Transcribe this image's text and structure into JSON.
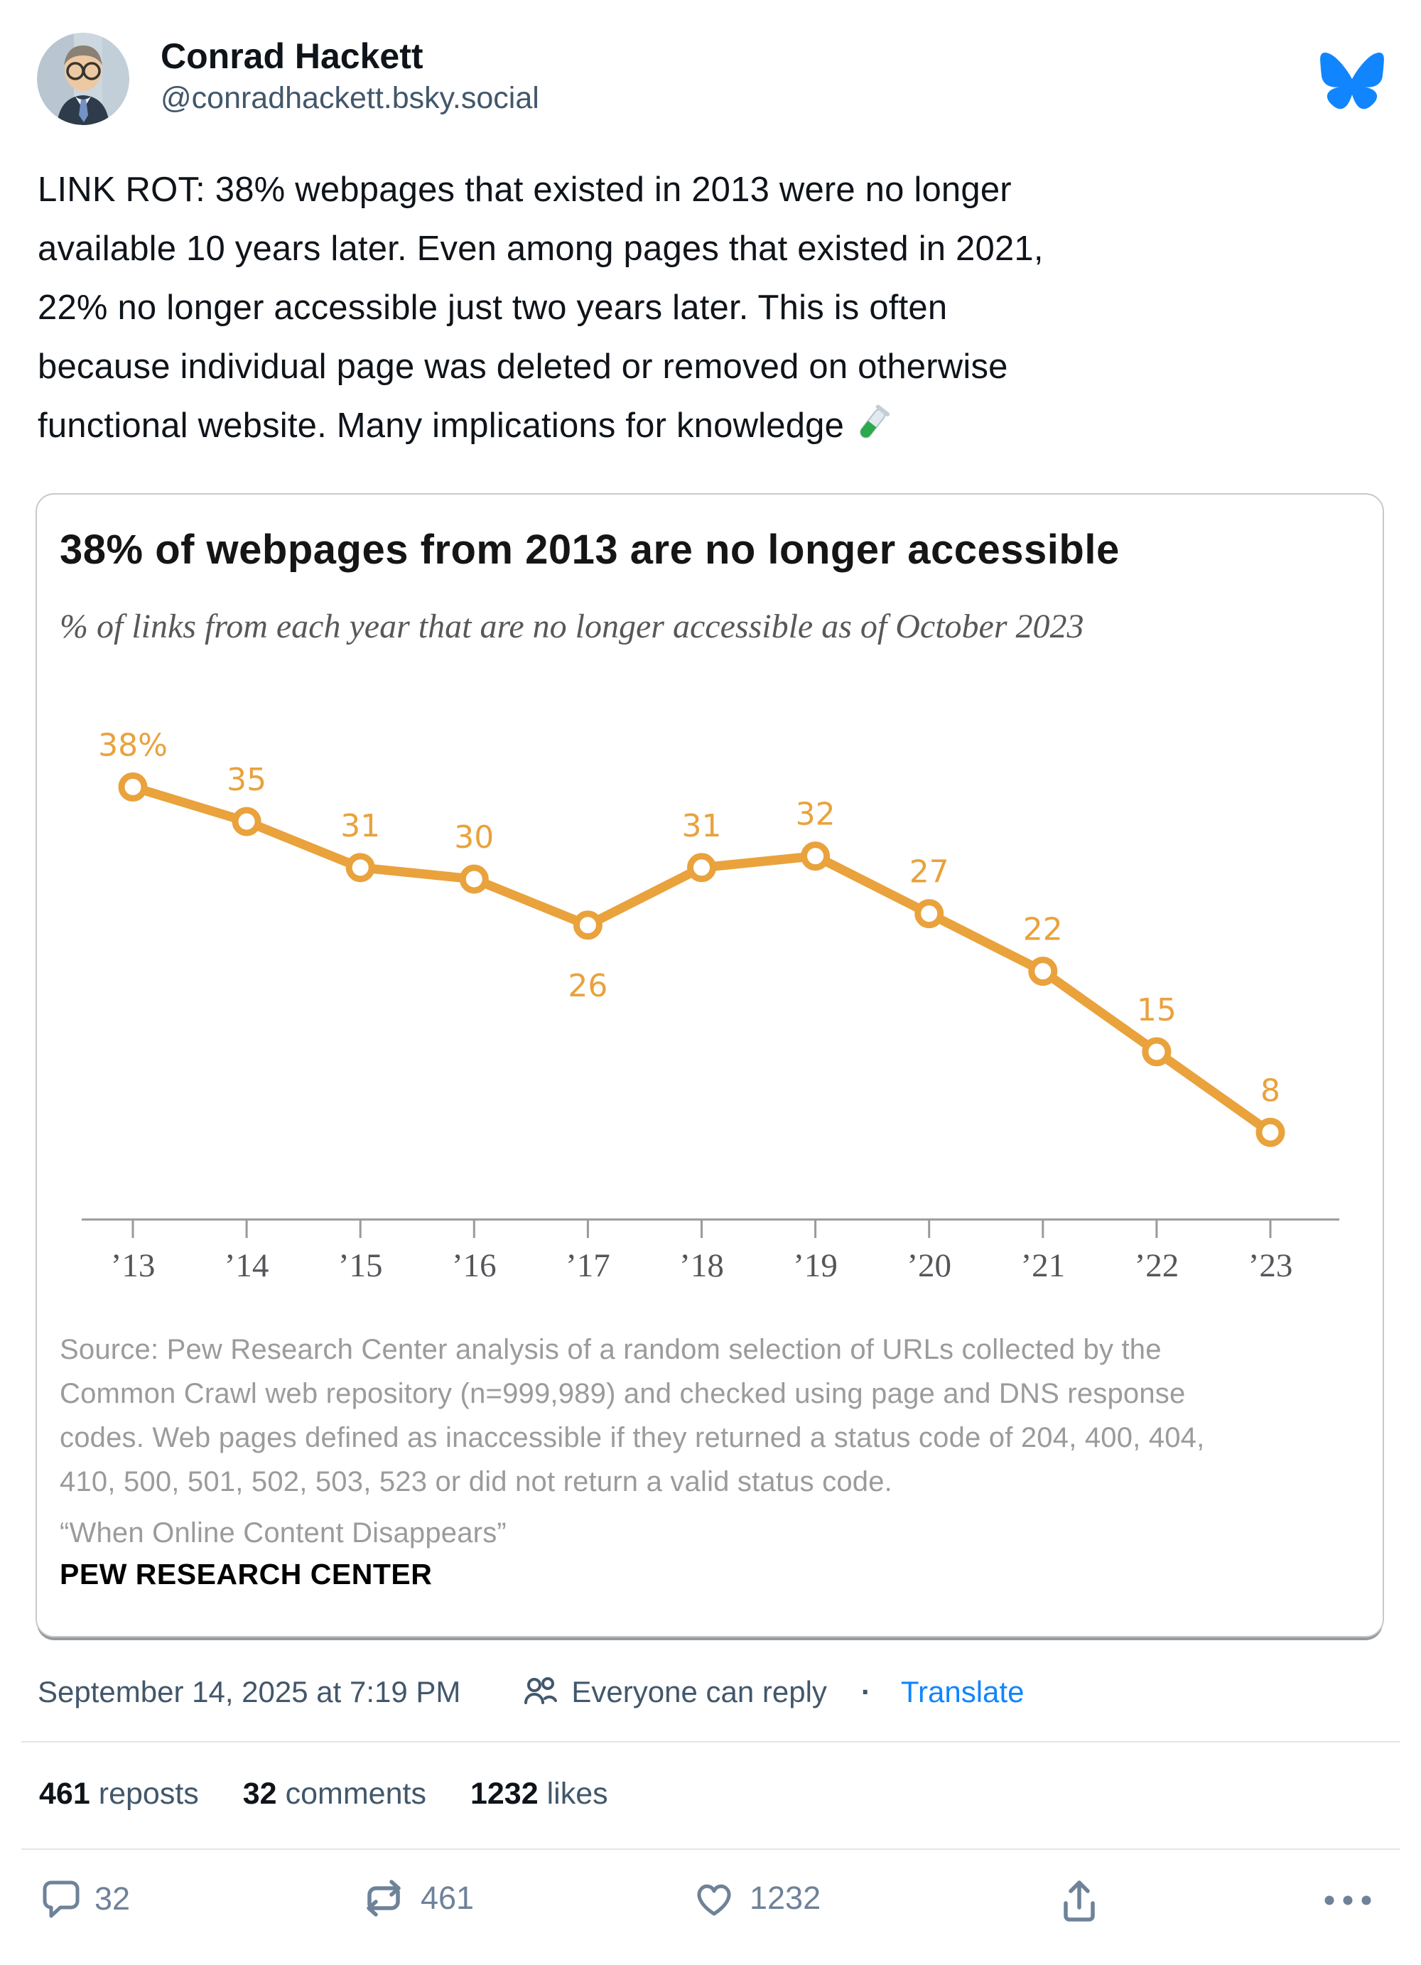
{
  "author": {
    "name": "Conrad Hackett",
    "handle": "@conradhackett.bsky.social"
  },
  "logo_color": "#1185FE",
  "post": {
    "body_lines": [
      "LINK ROT: 38% webpages that existed in 2013 were no longer",
      "available 10 years later. Even among pages that existed in 2021,",
      "22% no longer accessible just two years later. This is often",
      "because individual page was deleted or removed on otherwise",
      "functional website. Many implications for knowledge"
    ],
    "body_emoji": "test-tube",
    "timestamp": "September 14, 2025 at 7:19 PM",
    "reply_setting": "Everyone can reply",
    "separator": "·",
    "translate_label": "Translate",
    "stats": [
      {
        "value": "461",
        "label": "reposts"
      },
      {
        "value": "32",
        "label": "comments"
      },
      {
        "value": "1232",
        "label": "likes"
      }
    ],
    "action_counts": {
      "comments": "32",
      "reposts": "461",
      "likes": "1232"
    }
  },
  "card": {
    "title": "38% of webpages from 2013 are no longer accessible",
    "subtitle": "% of links from each year that are no longer accessible as of October 2023",
    "source_lines": [
      "Source: Pew Research Center analysis of a random selection of URLs collected by the",
      "Common Crawl web repository (n=999,989) and checked using page and DNS response",
      "codes. Web pages defined as inaccessible if they returned a status code of 204, 400, 404,",
      "410, 500, 501, 502, 503, 523 or did not return a valid status code."
    ],
    "quote_line": "“When Online Content Disappears”",
    "brand": "PEW RESEARCH CENTER"
  },
  "chart_data": {
    "type": "line",
    "x": [
      "’13",
      "’14",
      "’15",
      "’16",
      "’17",
      "’18",
      "’19",
      "’20",
      "’21",
      "’22",
      "’23"
    ],
    "values": [
      38,
      35,
      31,
      30,
      26,
      31,
      32,
      27,
      22,
      15,
      8
    ],
    "point_labels": [
      "38%",
      "35",
      "31",
      "30",
      "26",
      "31",
      "32",
      "27",
      "22",
      "15",
      "8"
    ],
    "labels_below_indices": [
      4
    ],
    "title": "38% of webpages from 2013 are no longer accessible",
    "subtitle": "% of links from each year that are no longer accessible as of October 2023",
    "ylim": [
      0,
      45
    ],
    "grid": false,
    "legend": "none",
    "line_color": "#E9A23C",
    "axis_color": "#9a9a9a",
    "tick_label_color": "#56565a"
  }
}
